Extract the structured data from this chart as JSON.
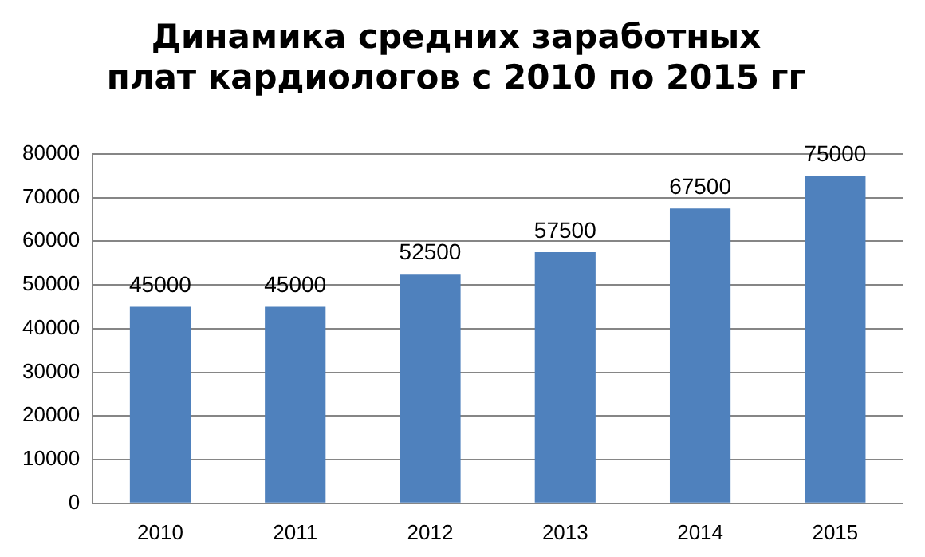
{
  "chart_data": {
    "type": "bar",
    "title": "Динамика средних заработных плат кардиологов с 2010 по 2015 гг",
    "categories": [
      "2010",
      "2011",
      "2012",
      "2013",
      "2014",
      "2015"
    ],
    "values": [
      45000,
      45000,
      52500,
      57500,
      67500,
      75000
    ],
    "color": "#4f81bd",
    "ylim": [
      0,
      80000
    ],
    "yticks": [
      0,
      10000,
      20000,
      30000,
      40000,
      50000,
      60000,
      70000,
      80000
    ],
    "grid": "y",
    "data_labels": true,
    "legend": false
  }
}
